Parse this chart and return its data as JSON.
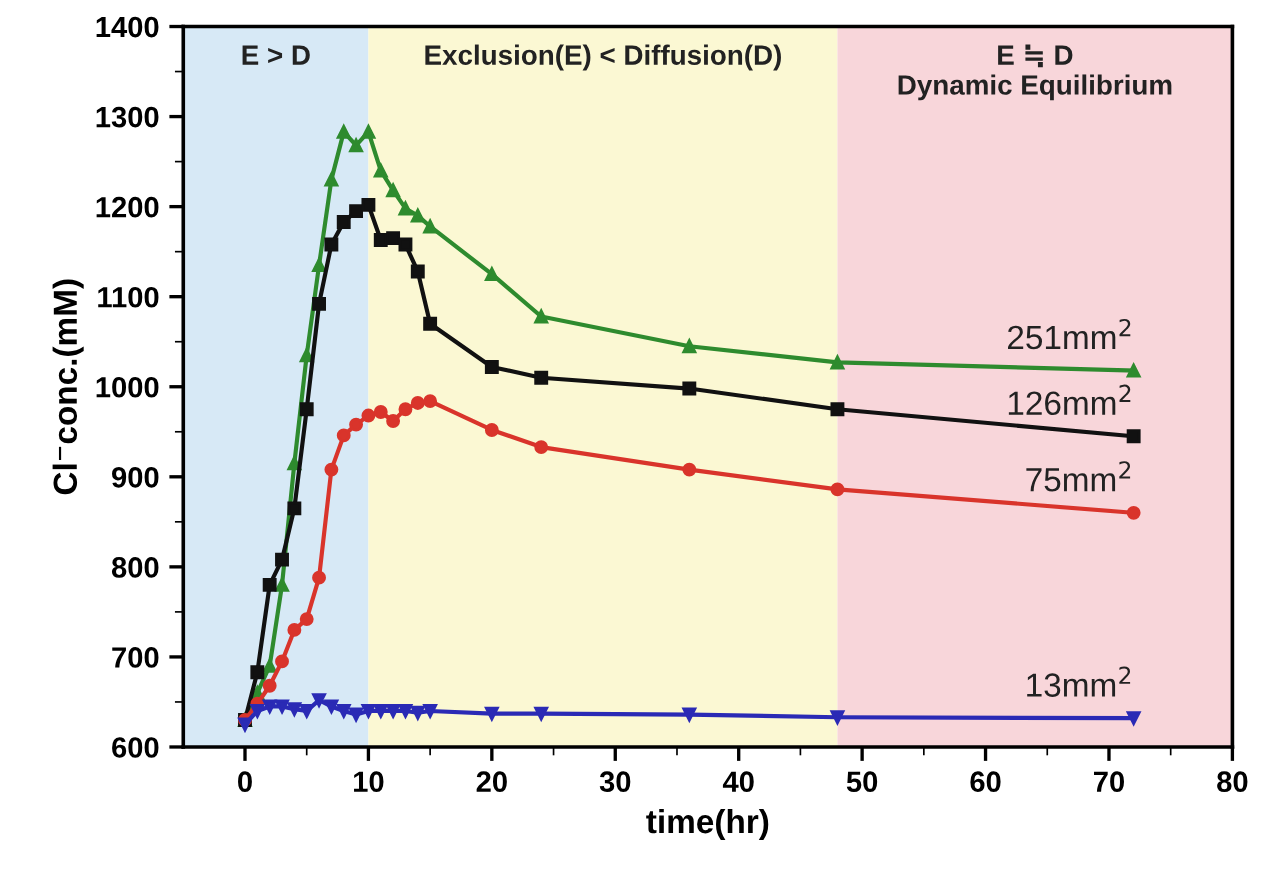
{
  "chart_data": {
    "type": "line",
    "xlabel": "time(hr)",
    "ylabel": "Cl⁻conc.(mM)",
    "xlim": [
      -5,
      80
    ],
    "xticks": [
      0,
      10,
      20,
      30,
      40,
      50,
      60,
      70,
      80
    ],
    "ylim": [
      600,
      1400
    ],
    "yticks": [
      600,
      700,
      800,
      900,
      1000,
      1100,
      1200,
      1300,
      1400
    ],
    "grid": false,
    "legend": false,
    "bands": [
      {
        "axis": "x",
        "from": -5,
        "to": 10,
        "label": "E > D",
        "color": "#d7e9f6"
      },
      {
        "axis": "x",
        "from": 10,
        "to": 48,
        "label": "Exclusion(E) < Diffusion(D)",
        "color": "#fbf8d3"
      },
      {
        "axis": "x",
        "from": 48,
        "to": 80,
        "label": "E ≒ D\nDynamic Equilibrium",
        "color": "#f8d6da"
      }
    ],
    "series": [
      {
        "name": "251mm$^{2}$",
        "color": "#2e8b2e",
        "marker": "triangle",
        "x": [
          0,
          1,
          2,
          3,
          4,
          5,
          6,
          7,
          8,
          9,
          10,
          11,
          12,
          13,
          14,
          15,
          20,
          24,
          36,
          48,
          72
        ],
        "values": [
          630,
          660,
          690,
          780,
          915,
          1035,
          1135,
          1230,
          1283,
          1268,
          1283,
          1240,
          1218,
          1198,
          1190,
          1178,
          1125,
          1078,
          1045,
          1027,
          1018
        ]
      },
      {
        "name": "126mm$^{2}$",
        "color": "#111111",
        "marker": "square",
        "x": [
          0,
          1,
          2,
          3,
          4,
          5,
          6,
          7,
          8,
          9,
          10,
          11,
          12,
          13,
          14,
          15,
          20,
          24,
          36,
          48,
          72
        ],
        "values": [
          630,
          683,
          780,
          808,
          865,
          975,
          1092,
          1158,
          1183,
          1195,
          1202,
          1163,
          1165,
          1158,
          1128,
          1070,
          1022,
          1010,
          998,
          975,
          945
        ]
      },
      {
        "name": "75mm$^{2}$",
        "color": "#d9342b",
        "marker": "circle",
        "x": [
          0,
          1,
          2,
          3,
          4,
          5,
          6,
          7,
          8,
          9,
          10,
          11,
          12,
          13,
          14,
          15,
          20,
          24,
          36,
          48,
          72
        ],
        "values": [
          630,
          648,
          668,
          695,
          730,
          742,
          788,
          908,
          946,
          958,
          968,
          972,
          962,
          975,
          982,
          984,
          952,
          933,
          908,
          886,
          860
        ]
      },
      {
        "name": "13mm$^{2}$",
        "color": "#2a2ab5",
        "marker": "triangle_down",
        "x": [
          0,
          1,
          2,
          3,
          4,
          5,
          6,
          7,
          8,
          9,
          10,
          11,
          12,
          13,
          14,
          15,
          20,
          24,
          36,
          48,
          72
        ],
        "values": [
          625,
          640,
          645,
          645,
          642,
          640,
          652,
          645,
          640,
          636,
          640,
          640,
          640,
          640,
          638,
          640,
          637,
          637,
          636,
          633,
          632
        ]
      }
    ]
  }
}
